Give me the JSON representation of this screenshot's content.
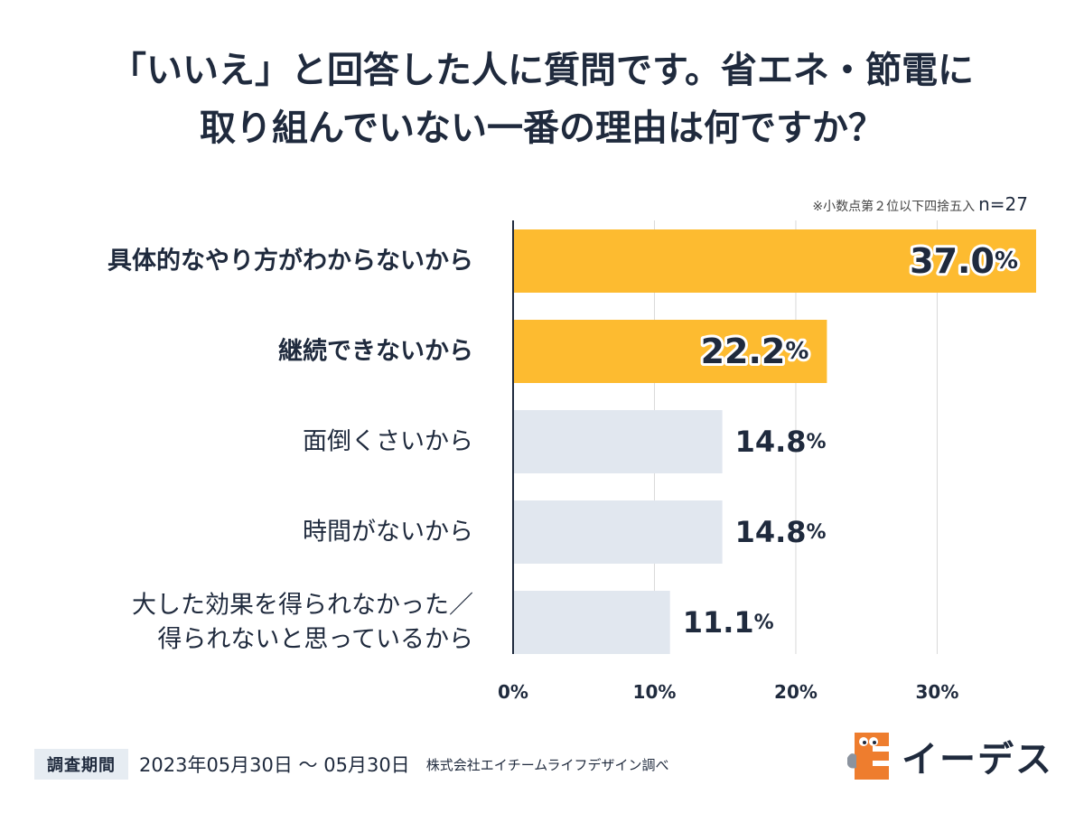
{
  "title": {
    "line1": "「いいえ」と回答した人に質問です。省エネ・節電に",
    "line2": "取り組んでいない一番の理由は何ですか？"
  },
  "note": {
    "rounding": "※小数点第２位以下四捨五入",
    "n": "n=27"
  },
  "chart_data": {
    "type": "bar",
    "orientation": "horizontal",
    "title": "「いいえ」と回答した人に質問です。省エネ・節電に取り組んでいない一番の理由は何ですか？",
    "categories": [
      "具体的なやり方がわからないから",
      "継続できないから",
      "面倒くさいから",
      "時間がないから",
      "大した効果を得られなかった／得られないと思っているから"
    ],
    "category_lines": [
      [
        "具体的なやり方がわからないから"
      ],
      [
        "継続できないから"
      ],
      [
        "面倒くさいから"
      ],
      [
        "時間がないから"
      ],
      [
        "大した効果を得られなかった／",
        "得られないと思っているから"
      ]
    ],
    "values": [
      37.0,
      22.2,
      14.8,
      14.8,
      11.1
    ],
    "value_labels": [
      "37.0",
      "22.2",
      "14.8",
      "14.8",
      "11.1"
    ],
    "unit": "%",
    "highlighted": [
      true,
      true,
      false,
      false,
      false
    ],
    "xlim": [
      0,
      37
    ],
    "xticks": [
      0,
      10,
      20,
      30
    ],
    "xtick_labels": [
      "0%",
      "10%",
      "20%",
      "30%"
    ],
    "grid": true,
    "colors": {
      "highlight": "#fdbb30",
      "normal": "#e1e7ef",
      "axis": "#1f2a3d",
      "grid": "#d9d9d9",
      "text": "#1f2a3d"
    }
  },
  "footer": {
    "period_label": "調査期間",
    "period": "2023年05月30日 〜 05月30日",
    "source": "株式会社エイチームライフデザイン調べ"
  },
  "logo": {
    "text": "イーデス",
    "icon": "edesu-logo-icon"
  }
}
